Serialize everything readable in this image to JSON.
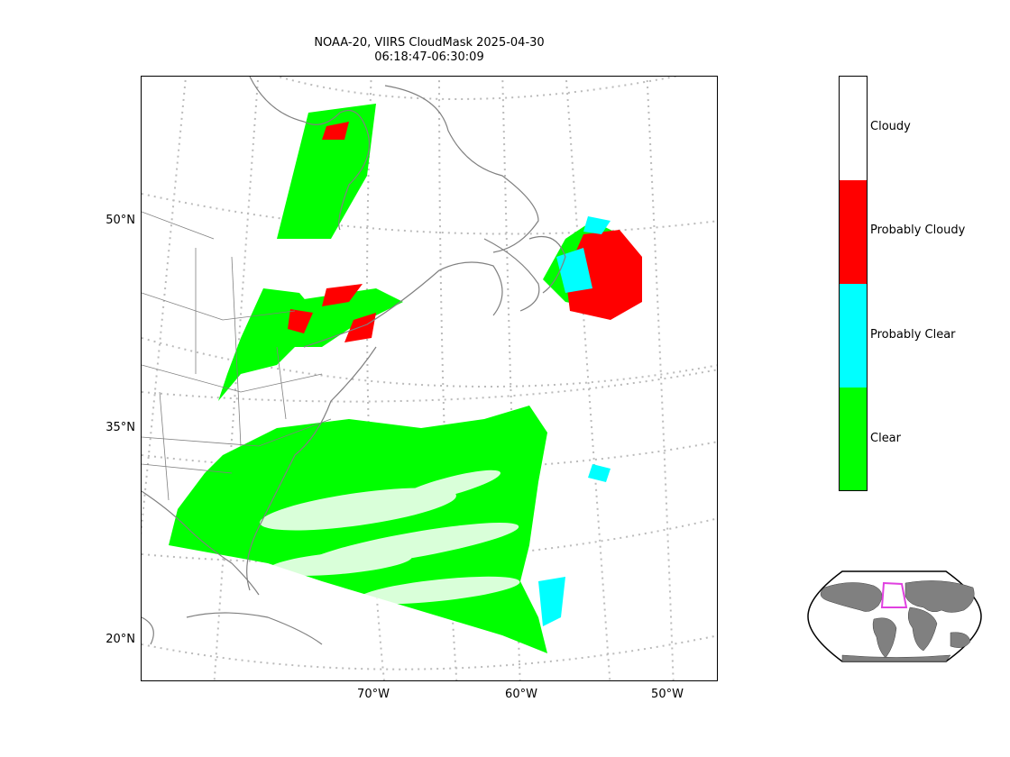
{
  "title": {
    "line1": "NOAA-20, VIIRS CloudMask 2025-04-30",
    "line2": "06:18:47-06:30:09"
  },
  "latitude_labels": [
    "50°N",
    "35°N",
    "20°N"
  ],
  "longitude_labels": [
    "70°W",
    "60°W",
    "50°W"
  ],
  "colorbar": {
    "categories": [
      {
        "label": "Cloudy",
        "color": "#ffffff"
      },
      {
        "label": "Probably Cloudy",
        "color": "#ff0000"
      },
      {
        "label": "Probably Clear",
        "color": "#00ffff"
      },
      {
        "label": "Clear",
        "color": "#00ff00"
      }
    ]
  },
  "map": {
    "satellite": "NOAA-20",
    "sensor": "VIIRS",
    "product": "CloudMask",
    "gridline_color": "#bbbbbb",
    "coastline_color": "#808080",
    "locator_box_color": "#e040e0"
  }
}
